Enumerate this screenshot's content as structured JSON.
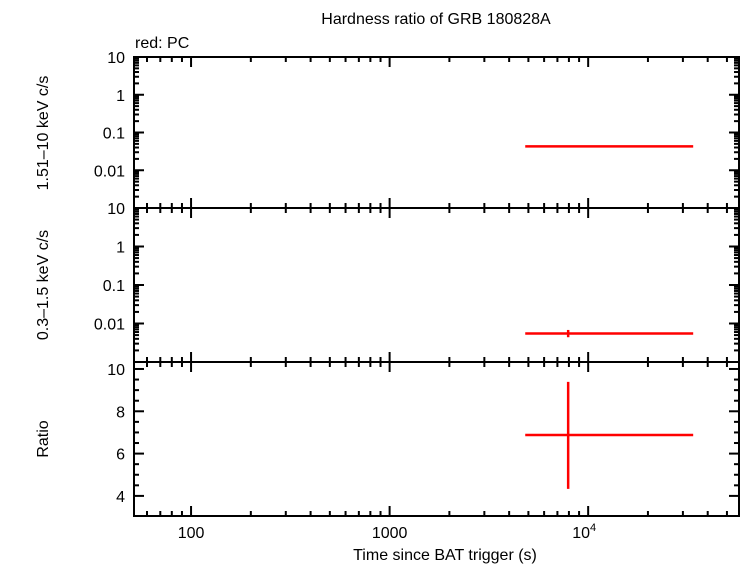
{
  "chart_data": [
    {
      "type": "scatter",
      "title": "Hardness ratio of GRB 180828A",
      "annotation": "red: PC",
      "ylabel": "1.51–10 keV c/s",
      "yscale": "log",
      "ylim": [
        0.001,
        10
      ],
      "yticks": [
        "10",
        "1",
        "0.1",
        "0.01"
      ],
      "ytick_values": [
        10,
        1,
        0.1,
        0.01
      ],
      "series": [
        {
          "color": "#ff0000",
          "points": [
            {
              "x": 7930,
              "xerr": [
                4820,
                33800
              ],
              "y": 0.043,
              "yerr": [
                0.041,
                0.045
              ]
            }
          ]
        }
      ]
    },
    {
      "type": "scatter",
      "ylabel": "0.3–1.5 keV c/s",
      "yscale": "log",
      "ylim": [
        0.001,
        10
      ],
      "yticks": [
        "10",
        "1",
        "0.1",
        "0.01"
      ],
      "ytick_values": [
        10,
        1,
        0.1,
        0.01
      ],
      "series": [
        {
          "color": "#ff0000",
          "points": [
            {
              "x": 7930,
              "xerr": [
                4820,
                33800
              ],
              "y": 0.0055,
              "yerr": [
                0.0044,
                0.0068
              ]
            }
          ]
        }
      ]
    },
    {
      "type": "scatter",
      "ylabel": "Ratio",
      "yscale": "linear",
      "ylim": [
        3.05,
        10.33
      ],
      "yticks": [
        "10",
        "8",
        "6",
        "4"
      ],
      "ytick_values": [
        10,
        8,
        6,
        4
      ],
      "series": [
        {
          "color": "#ff0000",
          "points": [
            {
              "x": 7930,
              "xerr": [
                4820,
                33800
              ],
              "y": 6.88,
              "yerr": [
                4.33,
                9.39
              ]
            }
          ]
        }
      ]
    }
  ],
  "xaxis": {
    "label": "Time since BAT trigger (s)",
    "scale": "log",
    "xlim": [
      51.6,
      57500
    ],
    "ticks": [
      "100",
      "1000",
      "10"
    ],
    "tick_sup": "4",
    "tick_values": [
      100,
      1000,
      10000
    ]
  }
}
